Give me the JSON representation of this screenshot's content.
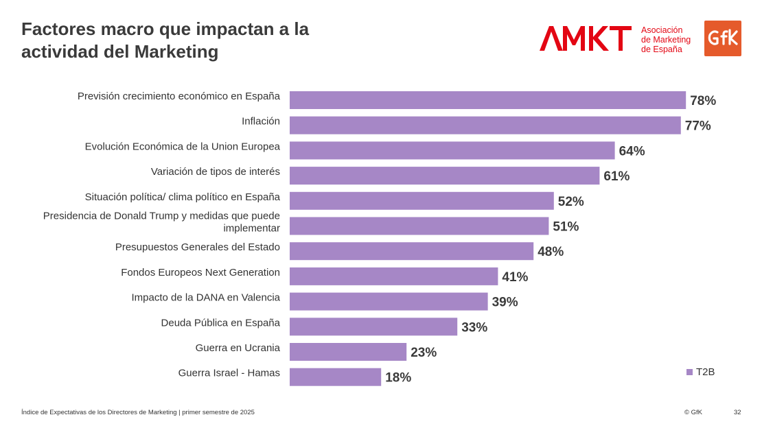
{
  "header": {
    "title_line1": "Factores macro que impactan a la",
    "title_line2": "actividad del Marketing",
    "amkt_logo_text": "AMKT",
    "amkt_sub_line1": "Asociación",
    "amkt_sub_line2": "de Marketing",
    "amkt_sub_line3": "de España",
    "gfk_logo_text": "GfK"
  },
  "chart_data": {
    "type": "bar",
    "orientation": "horizontal",
    "categories": [
      [
        "Previsión crecimiento económico en España"
      ],
      [
        "Inflación"
      ],
      [
        "Evolución Económica de la Union Europea"
      ],
      [
        "Variación de tipos de interés"
      ],
      [
        "Situación política/ clima político en España"
      ],
      [
        "Presidencia de Donald Trump y medidas que puede",
        "implementar"
      ],
      [
        "Presupuestos Generales del Estado"
      ],
      [
        "Fondos Europeos Next Generation"
      ],
      [
        "Impacto de la DANA en Valencia"
      ],
      [
        "Deuda Pública en España"
      ],
      [
        "Guerra en Ucrania"
      ],
      [
        "Guerra Israel - Hamas"
      ]
    ],
    "values": [
      78,
      77,
      64,
      61,
      52,
      51,
      48,
      41,
      39,
      33,
      23,
      18
    ],
    "value_labels": [
      "78%",
      "77%",
      "64%",
      "61%",
      "52%",
      "51%",
      "48%",
      "41%",
      "39%",
      "33%",
      "23%",
      "18%"
    ],
    "series": [
      {
        "name": "T2B",
        "values": [
          78,
          77,
          64,
          61,
          52,
          51,
          48,
          41,
          39,
          33,
          23,
          18
        ]
      }
    ],
    "xlim": [
      0,
      100
    ],
    "grid": false,
    "legend_position": "bottom-right",
    "bar_color": "#a687c6"
  },
  "legend": {
    "label": "T2B"
  },
  "footer": {
    "source": "Índice de Expectativas de los Directores de Marketing |  primer semestre de 2025",
    "copyright": "© GfK",
    "page_number": "32"
  },
  "colors": {
    "bar": "#a687c6",
    "amkt_red": "#e30613",
    "gfk_orange": "#e55a2b",
    "title": "#3a3a3a"
  }
}
